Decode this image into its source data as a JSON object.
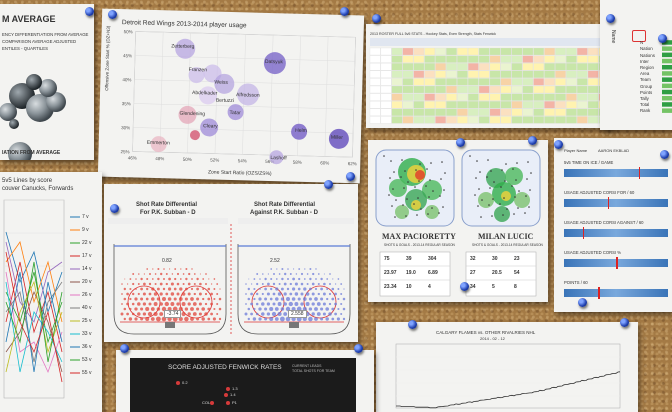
{
  "board": {
    "background": "#a47a45",
    "pin_color": "#1f3fae"
  },
  "paper_bubbles_left": {
    "title": "M AVERAGE",
    "subtitle_lines": [
      "ENCY DIFFERENTIATION FROM AVERAGE",
      "COMPARISON AVERAGE ADJUSTED",
      "ENTILES - QUARTILES"
    ],
    "footer": "IATION FROM AVERAGE"
  },
  "paper_scatter": {
    "title": "Detroit Red Wings 2013-2014 player usage",
    "ylabel": "Offensive Zone Start % (DZ+N3)",
    "xlabel": "Zone Start Ratio (OZS/ZS%)",
    "y_ticks": [
      "50%",
      "45%",
      "40%",
      "35%",
      "30%",
      "25%"
    ],
    "x_ticks": [
      "46%",
      "48%",
      "50%",
      "52%",
      "54%",
      "56%",
      "58%",
      "60%",
      "62%"
    ],
    "labels": [
      "Zetterberg",
      "Datsyuk",
      "Franzen",
      "Alfredsson",
      "Abdelkader",
      "Weiss",
      "Bertuzzi",
      "Tatar",
      "Nyquist",
      "Sheahan",
      "Glendening",
      "Andersson",
      "Cleary",
      "Smith",
      "Helm",
      "Miller",
      "Emmerton",
      "Lashoff"
    ]
  },
  "paper_table": {
    "header": "2013 ROSTER FULL 5v5 STATS - Hockey Stats, Even Strength, Stats Fenwick",
    "side_labels": [
      "Market Corsi",
      "Goals For",
      "Goals Ag.",
      "Shots For",
      "Shots Ag.",
      "Fenwick",
      "Corsi Rel",
      "PDO",
      "Zone St."
    ]
  },
  "paper_right_edge": {
    "labels": [
      "Name",
      "N",
      "Nation",
      "Nations",
      "Inter",
      "Region",
      "Area",
      "Team",
      "Group",
      "Points",
      "Tally",
      "Total",
      "Rank"
    ]
  },
  "paper_lines": {
    "title_lines": [
      "5v5 Lines by score",
      "couver Canucks, Forwards"
    ],
    "legend": [
      "7 v",
      "9 v",
      "22 v",
      "17 v",
      "14 v",
      "20 v",
      "26 v",
      "40 v",
      "25 v",
      "33 v",
      "36 v",
      "53 v",
      "55 v"
    ]
  },
  "paper_shot_rate": {
    "left_title": "Shot Rate Differential",
    "left_subtitle": "For P.K. Subban - D",
    "right_title": "Shot Rate Differential",
    "right_subtitle": "Against P.K. Subban - D",
    "left_value": "0.82",
    "right_value": "2.52",
    "left_box": "-3.74",
    "right_box": "2.558"
  },
  "paper_heatmaps": {
    "left_name": "MAX PACIORETTY",
    "left_sub": "SHOTS & GOALS - 2013-14 REGULAR SEASON",
    "right_name": "MILAN LUCIC",
    "right_sub": "SHOTS & GOALS - 2013-14 REGULAR SEASON",
    "left_stats": [
      "75",
      "39",
      "304",
      "23.97",
      "19.0",
      "6.89",
      "23.34",
      "10",
      "4"
    ],
    "right_stats": [
      "32",
      "30",
      "23",
      "27",
      "20.5",
      "54",
      "34",
      "5",
      "8"
    ]
  },
  "paper_bars": {
    "title": "AARON EKBLAD",
    "player_label": "Player Name",
    "rows": [
      {
        "label": "5v5 TIME ON ICE / GAME",
        "marker": 0.72
      },
      {
        "label": "USAGE ADJUSTED CORSI FOR / 60",
        "marker": 0.42
      },
      {
        "label": "USAGE ADJUSTED CORSI AGAINST / 60",
        "marker": 0.18
      },
      {
        "label": "USAGE ADJUSTED CORSI %",
        "marker": 0.5
      },
      {
        "label": "POINTS / 60",
        "marker": 0.33
      }
    ]
  },
  "paper_cumulative": {
    "title": "CALGARY FLAMES vs. OTHER RIVALRIES NHL",
    "subtitle": "2014 - 02 - 12"
  },
  "paper_fenwick": {
    "title": "SCORE ADJUSTED FENWICK RATES",
    "legend": [
      "CURRENT LEADS",
      "TOTAL SHOTS FOR TEAM"
    ],
    "points": [
      "0.2",
      "1.3",
      "1.4",
      "COL",
      "P1"
    ]
  }
}
